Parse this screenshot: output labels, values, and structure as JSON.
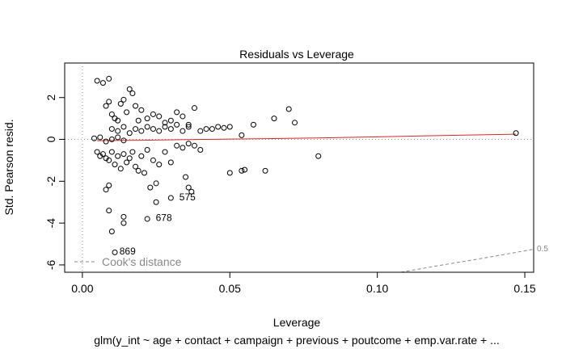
{
  "chart_data": {
    "type": "scatter",
    "title": "Residuals vs Leverage",
    "xlabel": "Leverage",
    "ylabel": "Std. Pearson resid.",
    "subtitle": "glm(y_int ~ age + contact + campaign + previous + poutcome + emp.var.rate + ...",
    "xlim": [
      -0.006,
      0.153
    ],
    "ylim": [
      -6.35,
      3.65
    ],
    "x_ticks": [
      0.0,
      0.05,
      0.1,
      0.15
    ],
    "x_tick_labels": [
      "0.00",
      "0.05",
      "0.10",
      "0.15"
    ],
    "y_ticks": [
      -6,
      -4,
      -2,
      0,
      2
    ],
    "y_tick_labels": [
      "-6",
      "-4",
      "-2",
      "0",
      "2"
    ],
    "reference_lines": {
      "h": 0,
      "v": 0
    },
    "smooth_color": "#d62728",
    "smooth": [
      [
        0.005,
        -0.06
      ],
      [
        0.02,
        -0.04
      ],
      [
        0.04,
        0.0
      ],
      [
        0.06,
        0.03
      ],
      [
        0.08,
        0.07
      ],
      [
        0.1,
        0.12
      ],
      [
        0.12,
        0.18
      ],
      [
        0.147,
        0.25
      ]
    ],
    "cooks_contour": {
      "label": "0.5",
      "points": [
        [
          0.108,
          -6.35
        ],
        [
          0.12,
          -6.05
        ],
        [
          0.135,
          -5.7
        ],
        [
          0.153,
          -5.25
        ]
      ]
    },
    "legend": {
      "label": "Cook's distance",
      "position": "bottom-left"
    },
    "labeled_points": [
      {
        "label": "575",
        "x": 0.0315,
        "y": -2.75
      },
      {
        "label": "678",
        "x": 0.0235,
        "y": -3.75
      },
      {
        "label": "869",
        "x": 0.0112,
        "y": -5.35
      }
    ],
    "points": [
      [
        0.005,
        2.8
      ],
      [
        0.007,
        2.7
      ],
      [
        0.009,
        2.9
      ],
      [
        0.008,
        1.6
      ],
      [
        0.009,
        1.8
      ],
      [
        0.01,
        1.2
      ],
      [
        0.011,
        1.0
      ],
      [
        0.012,
        0.9
      ],
      [
        0.013,
        1.7
      ],
      [
        0.014,
        1.9
      ],
      [
        0.015,
        1.3
      ],
      [
        0.016,
        2.4
      ],
      [
        0.017,
        2.2
      ],
      [
        0.018,
        1.6
      ],
      [
        0.019,
        0.9
      ],
      [
        0.02,
        1.4
      ],
      [
        0.022,
        1.0
      ],
      [
        0.024,
        1.2
      ],
      [
        0.026,
        1.1
      ],
      [
        0.028,
        0.8
      ],
      [
        0.03,
        0.9
      ],
      [
        0.032,
        1.3
      ],
      [
        0.034,
        1.1
      ],
      [
        0.036,
        0.7
      ],
      [
        0.038,
        1.5
      ],
      [
        0.01,
        0.5
      ],
      [
        0.012,
        0.4
      ],
      [
        0.014,
        0.6
      ],
      [
        0.016,
        0.3
      ],
      [
        0.018,
        0.5
      ],
      [
        0.02,
        0.4
      ],
      [
        0.022,
        0.6
      ],
      [
        0.024,
        0.5
      ],
      [
        0.026,
        0.4
      ],
      [
        0.028,
        0.6
      ],
      [
        0.03,
        0.5
      ],
      [
        0.032,
        0.7
      ],
      [
        0.034,
        0.4
      ],
      [
        0.036,
        0.6
      ],
      [
        0.04,
        0.4
      ],
      [
        0.042,
        0.5
      ],
      [
        0.044,
        0.5
      ],
      [
        0.046,
        0.6
      ],
      [
        0.048,
        0.55
      ],
      [
        0.05,
        0.6
      ],
      [
        0.054,
        0.2
      ],
      [
        0.058,
        0.7
      ],
      [
        0.065,
        1.0
      ],
      [
        0.07,
        1.45
      ],
      [
        0.072,
        0.8
      ],
      [
        0.147,
        0.3
      ],
      [
        0.004,
        0.05
      ],
      [
        0.006,
        0.1
      ],
      [
        0.008,
        -0.1
      ],
      [
        0.01,
        0.0
      ],
      [
        0.012,
        0.1
      ],
      [
        0.014,
        -0.05
      ],
      [
        0.005,
        -0.6
      ],
      [
        0.006,
        -0.8
      ],
      [
        0.007,
        -0.7
      ],
      [
        0.008,
        -0.9
      ],
      [
        0.009,
        -1.0
      ],
      [
        0.01,
        -0.6
      ],
      [
        0.011,
        -1.2
      ],
      [
        0.012,
        -0.8
      ],
      [
        0.013,
        -1.4
      ],
      [
        0.014,
        -0.7
      ],
      [
        0.015,
        -1.1
      ],
      [
        0.016,
        -0.9
      ],
      [
        0.017,
        -0.6
      ],
      [
        0.018,
        -1.3
      ],
      [
        0.019,
        -1.5
      ],
      [
        0.02,
        -0.8
      ],
      [
        0.021,
        -1.6
      ],
      [
        0.022,
        -0.5
      ],
      [
        0.024,
        -1.0
      ],
      [
        0.025,
        -2.1
      ],
      [
        0.026,
        -1.2
      ],
      [
        0.028,
        -0.6
      ],
      [
        0.03,
        -1.1
      ],
      [
        0.032,
        -0.3
      ],
      [
        0.034,
        -0.4
      ],
      [
        0.036,
        -0.2
      ],
      [
        0.038,
        -0.3
      ],
      [
        0.04,
        -0.5
      ],
      [
        0.035,
        -1.8
      ],
      [
        0.036,
        -2.3
      ],
      [
        0.037,
        -2.5
      ],
      [
        0.008,
        -2.4
      ],
      [
        0.009,
        -2.2
      ],
      [
        0.023,
        -2.3
      ],
      [
        0.025,
        -3.0
      ],
      [
        0.009,
        -3.4
      ],
      [
        0.014,
        -3.7
      ],
      [
        0.014,
        -4.0
      ],
      [
        0.01,
        -4.4
      ],
      [
        0.05,
        -1.6
      ],
      [
        0.054,
        -1.5
      ],
      [
        0.055,
        -1.45
      ],
      [
        0.062,
        -1.5
      ],
      [
        0.08,
        -0.8
      ],
      [
        0.03,
        -2.8
      ],
      [
        0.022,
        -3.8
      ],
      [
        0.011,
        -5.4
      ]
    ]
  }
}
